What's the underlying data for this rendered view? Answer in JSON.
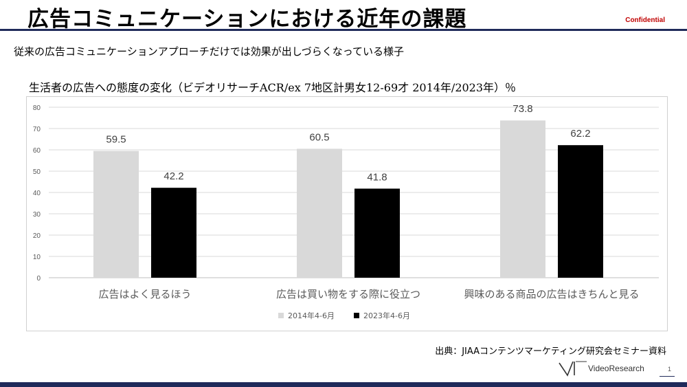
{
  "slide": {
    "title": "広告コミュニケーションにおける近年の課題",
    "confidential": "Confidential",
    "subtitle": "従来の広告コミュニケーションアプローチだけでは効果が出しづらくなっている様子",
    "source": "出典：JIAAコンテンツマーケティング研究会セミナー資料",
    "logo_text": "VideoResearch",
    "page_number": "1"
  },
  "colors": {
    "series_2014": "#d9d9d9",
    "series_2023": "#000000",
    "brand_navy": "#1f2a5a",
    "confidential_red": "#c00000"
  },
  "chart_data": {
    "type": "bar",
    "title": "生活者の広告への態度の変化（ビデオリサーチACR/ex 7地区計男女12-69才 2014年/2023年）％",
    "categories": [
      "広告はよく見るほう",
      "広告は買い物をする際に役立つ",
      "興味のある商品の広告はきちんと見る"
    ],
    "series": [
      {
        "name": "2014年4-6月",
        "values": [
          59.5,
          60.5,
          73.8
        ],
        "color": "#d9d9d9"
      },
      {
        "name": "2023年4-6月",
        "values": [
          42.2,
          41.8,
          62.2
        ],
        "color": "#000000"
      }
    ],
    "ylim": [
      0,
      80
    ],
    "yticks": [
      0,
      10,
      20,
      30,
      40,
      50,
      60,
      70,
      80
    ],
    "grid": true,
    "legend": "bottom-center",
    "data_labels": true
  }
}
